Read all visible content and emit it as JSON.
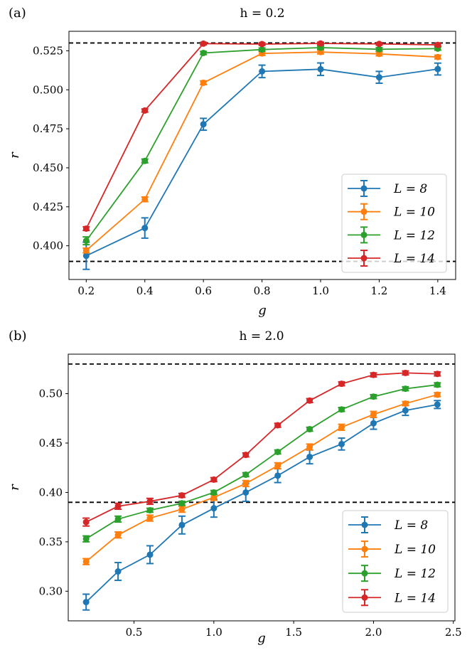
{
  "chart_data": [
    {
      "type": "line",
      "panel_label": "(a)",
      "title": "h = 0.2",
      "xlabel": "g",
      "ylabel": "r",
      "xlim": [
        0.141,
        1.461
      ],
      "ylim": [
        0.3784,
        0.5375
      ],
      "xticks": [
        0.2,
        0.4,
        0.6,
        0.8,
        1.0,
        1.2,
        1.4
      ],
      "xtick_labels": [
        "0.2",
        "0.4",
        "0.6",
        "0.8",
        "1.0",
        "1.2",
        "1.4"
      ],
      "yticks": [
        0.4,
        0.425,
        0.45,
        0.475,
        0.5,
        0.525
      ],
      "ytick_labels": [
        "0.400",
        "0.425",
        "0.450",
        "0.475",
        "0.500",
        "0.525"
      ],
      "reference_lines": [
        0.53,
        0.39
      ],
      "grid": false,
      "legend_position": "lower-right",
      "x": [
        0.2,
        0.4,
        0.6,
        0.8,
        1.0,
        1.2,
        1.4
      ],
      "series": [
        {
          "name": "L = 8",
          "color": "#1f77b4",
          "values": [
            0.3936,
            0.4114,
            0.4779,
            0.5118,
            0.5132,
            0.508,
            0.5133
          ],
          "errors": [
            0.0087,
            0.0065,
            0.0038,
            0.004,
            0.004,
            0.0038,
            0.0038
          ]
        },
        {
          "name": "L = 10",
          "color": "#ff7f0e",
          "values": [
            0.397,
            0.4298,
            0.5045,
            0.5233,
            0.5242,
            0.523,
            0.521
          ],
          "errors": [
            0.0015,
            0.0015,
            0.0012,
            0.0012,
            0.0012,
            0.0012,
            0.0012
          ]
        },
        {
          "name": "L = 12",
          "color": "#2ca02c",
          "values": [
            0.4032,
            0.4544,
            0.5236,
            0.5258,
            0.527,
            0.526,
            0.5264
          ],
          "errors": [
            0.0025,
            0.0012,
            0.001,
            0.001,
            0.001,
            0.001,
            0.001
          ]
        },
        {
          "name": "L = 14",
          "color": "#d62728",
          "values": [
            0.411,
            0.4867,
            0.5296,
            0.5293,
            0.5297,
            0.5294,
            0.5288
          ],
          "errors": [
            0.0012,
            0.001,
            0.0008,
            0.0008,
            0.0008,
            0.0008,
            0.0008
          ]
        }
      ]
    },
    {
      "type": "line",
      "panel_label": "(b)",
      "title": "h = 2.0",
      "xlabel": "g",
      "ylabel": "r",
      "xlim": [
        0.088,
        2.51
      ],
      "ylim": [
        0.27,
        0.54
      ],
      "xticks": [
        0.5,
        1.0,
        1.5,
        2.0,
        2.5
      ],
      "xtick_labels": [
        "0.5",
        "1.0",
        "1.5",
        "2.0",
        "2.5"
      ],
      "yticks": [
        0.3,
        0.35,
        0.4,
        0.45,
        0.5
      ],
      "ytick_labels": [
        "0.30",
        "0.35",
        "0.40",
        "0.45",
        "0.50"
      ],
      "reference_lines": [
        0.53,
        0.39
      ],
      "grid": false,
      "legend_position": "lower-right",
      "x": [
        0.2,
        0.4,
        0.6,
        0.8,
        1.0,
        1.2,
        1.4,
        1.6,
        1.8,
        2.0,
        2.2,
        2.4
      ],
      "series": [
        {
          "name": "L = 8",
          "color": "#1f77b4",
          "values": [
            0.289,
            0.32,
            0.337,
            0.367,
            0.384,
            0.4,
            0.417,
            0.436,
            0.449,
            0.47,
            0.483,
            0.489
          ],
          "errors": [
            0.008,
            0.009,
            0.009,
            0.009,
            0.009,
            0.009,
            0.007,
            0.007,
            0.006,
            0.006,
            0.005,
            0.004
          ]
        },
        {
          "name": "L = 10",
          "color": "#ff7f0e",
          "values": [
            0.33,
            0.357,
            0.374,
            0.383,
            0.395,
            0.409,
            0.427,
            0.446,
            0.466,
            0.479,
            0.49,
            0.499
          ],
          "errors": [
            0.003,
            0.003,
            0.003,
            0.003,
            0.003,
            0.003,
            0.003,
            0.003,
            0.003,
            0.003,
            0.002,
            0.002
          ]
        },
        {
          "name": "L = 12",
          "color": "#2ca02c",
          "values": [
            0.353,
            0.373,
            0.382,
            0.389,
            0.4,
            0.418,
            0.441,
            0.464,
            0.484,
            0.497,
            0.505,
            0.509
          ],
          "errors": [
            0.003,
            0.003,
            0.002,
            0.002,
            0.002,
            0.002,
            0.002,
            0.002,
            0.002,
            0.002,
            0.002,
            0.002
          ]
        },
        {
          "name": "L = 14",
          "color": "#d62728",
          "values": [
            0.37,
            0.386,
            0.391,
            0.397,
            0.413,
            0.438,
            0.468,
            0.493,
            0.51,
            0.519,
            0.521,
            0.52
          ],
          "errors": [
            0.004,
            0.003,
            0.003,
            0.002,
            0.002,
            0.002,
            0.002,
            0.002,
            0.002,
            0.002,
            0.002,
            0.002
          ]
        }
      ]
    }
  ]
}
